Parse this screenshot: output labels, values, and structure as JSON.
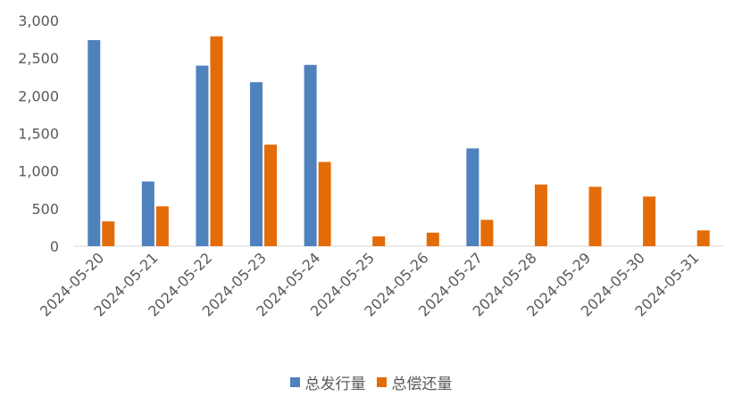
{
  "chart_data": {
    "type": "bar",
    "categories": [
      "2024-05-20",
      "2024-05-21",
      "2024-05-22",
      "2024-05-23",
      "2024-05-24",
      "2024-05-25",
      "2024-05-26",
      "2024-05-27",
      "2024-05-28",
      "2024-05-29",
      "2024-05-30",
      "2024-05-31"
    ],
    "series": [
      {
        "name": "总发行量",
        "color": "#4f81bd",
        "values": [
          2740,
          860,
          2400,
          2180,
          2410,
          0,
          0,
          1300,
          0,
          0,
          0,
          0
        ]
      },
      {
        "name": "总偿还量",
        "color": "#e36c09",
        "values": [
          330,
          530,
          2790,
          1350,
          1120,
          130,
          180,
          350,
          820,
          790,
          660,
          210
        ]
      }
    ],
    "yticks": [
      "0",
      "500",
      "1,000",
      "1,500",
      "2,000",
      "2,500",
      "3,000"
    ],
    "ylim": [
      0,
      3000
    ],
    "grid": false,
    "legend_position": "bottom"
  }
}
